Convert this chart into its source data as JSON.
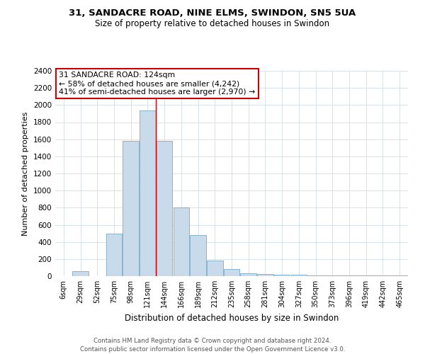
{
  "title_line1": "31, SANDACRE ROAD, NINE ELMS, SWINDON, SN5 5UA",
  "title_line2": "Size of property relative to detached houses in Swindon",
  "xlabel": "Distribution of detached houses by size in Swindon",
  "ylabel": "Number of detached properties",
  "annotation_line1": "31 SANDACRE ROAD: 124sqm",
  "annotation_line2": "← 58% of detached houses are smaller (4,242)",
  "annotation_line3": "41% of semi-detached houses are larger (2,970) →",
  "bar_labels": [
    "6sqm",
    "29sqm",
    "52sqm",
    "75sqm",
    "98sqm",
    "121sqm",
    "144sqm",
    "166sqm",
    "189sqm",
    "212sqm",
    "235sqm",
    "258sqm",
    "281sqm",
    "304sqm",
    "327sqm",
    "350sqm",
    "373sqm",
    "396sqm",
    "419sqm",
    "442sqm",
    "465sqm"
  ],
  "bar_values": [
    0,
    55,
    0,
    500,
    1580,
    1940,
    1580,
    800,
    480,
    180,
    80,
    35,
    25,
    20,
    15,
    10,
    8,
    5,
    5,
    5,
    5
  ],
  "bar_color": "#c9daea",
  "bar_edge_color": "#7aaac8",
  "vline_color": "#cc0000",
  "vline_pos": 5.5,
  "ylim": [
    0,
    2400
  ],
  "yticks": [
    0,
    200,
    400,
    600,
    800,
    1000,
    1200,
    1400,
    1600,
    1800,
    2000,
    2200,
    2400
  ],
  "grid_color": "#d0dde8",
  "background_color": "#ffffff",
  "footer_line1": "Contains HM Land Registry data © Crown copyright and database right 2024.",
  "footer_line2": "Contains public sector information licensed under the Open Government Licence v3.0."
}
